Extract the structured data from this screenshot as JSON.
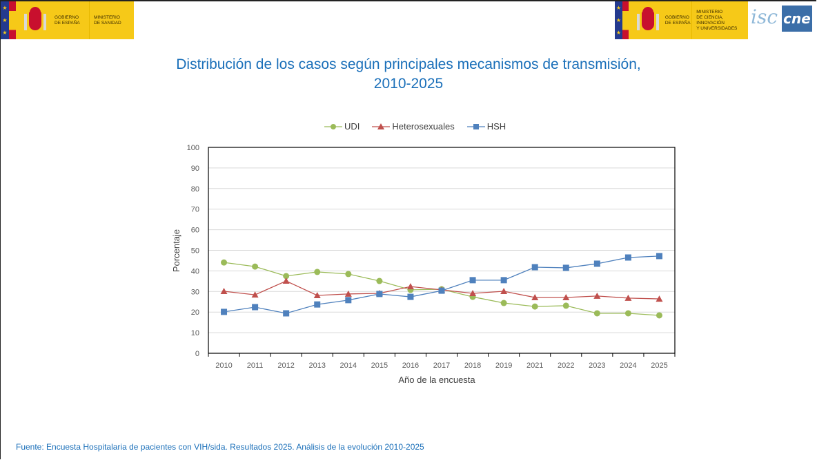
{
  "header": {
    "logo_left": {
      "line1": "GOBIERNO",
      "line2": "DE ESPAÑA",
      "ministry": [
        "MINISTERIO",
        "DE SANIDAD"
      ]
    },
    "logo_right": {
      "line1": "GOBIERNO",
      "line2": "DE ESPAÑA",
      "ministry": [
        "MINISTERIO",
        "DE CIENCIA, INNOVACIÓN",
        "Y UNIVERSIDADES"
      ]
    },
    "isciii_label": "isc",
    "cne_label": "cne"
  },
  "title_line1": "Distribución de los casos según principales mecanismos de transmisión,",
  "title_line2": "2010-2025",
  "source": "Fuente: Encuesta Hospitalaria de pacientes con VIH/sida. Resultados 2025. Análisis de la evolución 2010-2025",
  "chart_data": {
    "type": "line",
    "title": "Distribución de los casos según principales mecanismos de transmisión, 2010-2025",
    "xlabel": "Año de la encuesta",
    "ylabel": "Porcentaje",
    "ylim": [
      0,
      100
    ],
    "yticks": [
      0,
      10,
      20,
      30,
      40,
      50,
      60,
      70,
      80,
      90,
      100
    ],
    "grid": true,
    "legend": "top-center",
    "categories": [
      "2010",
      "2011",
      "2012",
      "2013",
      "2014",
      "2015",
      "2016",
      "2017",
      "2018",
      "2019",
      "2021",
      "2022",
      "2023",
      "2024",
      "2025"
    ],
    "series": [
      {
        "name": "UDI",
        "color": "#9bbb59",
        "marker": "circle",
        "values": [
          44.1,
          42.1,
          37.5,
          39.5,
          38.5,
          35.1,
          30.8,
          31.1,
          27.4,
          24.4,
          22.7,
          23.1,
          19.4,
          19.4,
          18.4
        ]
      },
      {
        "name": "Heterosexuales",
        "color": "#c0504d",
        "marker": "triangle",
        "values": [
          30.1,
          28.4,
          35.1,
          28.1,
          28.8,
          29.1,
          32.4,
          30.8,
          29.1,
          30.1,
          27.1,
          27.1,
          27.8,
          26.8,
          26.4
        ]
      },
      {
        "name": "HSH",
        "color": "#4f81bd",
        "marker": "square",
        "values": [
          20.1,
          22.4,
          19.4,
          23.7,
          25.8,
          28.8,
          27.4,
          30.4,
          35.5,
          35.5,
          41.8,
          41.5,
          43.5,
          46.5,
          47.2
        ]
      }
    ]
  }
}
